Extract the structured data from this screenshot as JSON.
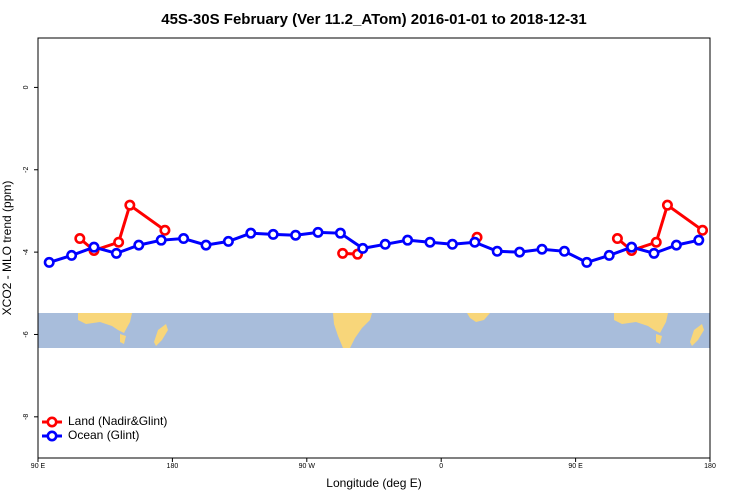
{
  "chart_data": {
    "type": "line",
    "title": "45S-30S February (Ver 11.2_ATom)   2016-01-01 to 2018-12-31",
    "xlabel": "Longitude (deg E)",
    "ylabel": "XCO2 - MLO trend (ppm)",
    "xlim": [
      90,
      540
    ],
    "xticks": [
      {
        "value": 90,
        "label": "90 E"
      },
      180,
      {
        "value": 270,
        "label": "90 W"
      },
      {
        "value": 360,
        "label": "0"
      },
      {
        "value": 450,
        "label": "90 E"
      },
      {
        "value": 540,
        "label": "180"
      }
    ],
    "ylim": [
      -9,
      1.2
    ],
    "yticks": [
      0,
      -2,
      -4,
      -6,
      -8
    ],
    "legend": "bottom-left",
    "series": [
      {
        "name": "Land (Nadir&Glint)",
        "color": "#ff0000",
        "x": [
          118,
          127.5,
          144,
          151.5,
          175,
          null,
          294,
          304,
          null,
          384,
          null,
          478,
          487.5,
          504,
          511.5,
          535
        ],
        "values": [
          -3.67,
          -3.96,
          -3.76,
          -2.86,
          -3.47,
          null,
          -4.03,
          -4.05,
          null,
          -3.64,
          null,
          -3.67,
          -3.96,
          -3.76,
          -2.86,
          -3.47
        ]
      },
      {
        "name": "Ocean (Glint)",
        "color": "#0000ff",
        "x": [
          97.5,
          112.5,
          127.5,
          142.5,
          157.5,
          172.5,
          187.5,
          202.5,
          217.5,
          232.5,
          247.5,
          262.5,
          277.5,
          292.5,
          307.5,
          322.5,
          337.5,
          352.5,
          367.5,
          382.5,
          397.5,
          412.5,
          427.5,
          442.5,
          457.5,
          472.5,
          487.5,
          502.5,
          517.5,
          532.5
        ],
        "values": [
          -4.25,
          -4.08,
          -3.88,
          -4.03,
          -3.83,
          -3.71,
          -3.67,
          -3.83,
          -3.74,
          -3.54,
          -3.57,
          -3.59,
          -3.52,
          -3.54,
          -3.91,
          -3.81,
          -3.71,
          -3.76,
          -3.81,
          -3.76,
          -3.98,
          -4.0,
          -3.93,
          -3.98,
          -4.25,
          -4.08,
          -3.88,
          -4.03,
          -3.83,
          -3.71
        ]
      }
    ]
  }
}
